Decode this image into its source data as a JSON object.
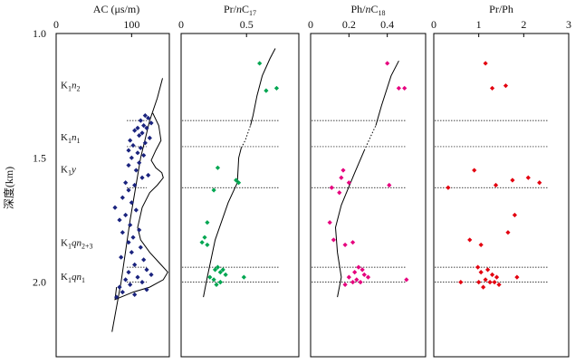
{
  "y_axis": {
    "label": "深度(km)",
    "range": [
      1.0,
      2.3
    ],
    "ticks": [
      1.0,
      1.5,
      2.0
    ],
    "tick_labels": [
      "1.0",
      "1.5",
      "2.0"
    ]
  },
  "formation_boundaries": [
    1.35,
    1.455,
    1.62,
    1.94,
    2.0
  ],
  "formations": [
    {
      "base": "K",
      "sub": "1",
      "italic": "n",
      "suffix": "2",
      "depth": 1.205
    },
    {
      "base": "K",
      "sub": "1",
      "italic": "n",
      "suffix": "1",
      "depth": 1.415
    },
    {
      "base": "K",
      "sub": "1",
      "italic": "y",
      "suffix": "",
      "depth": 1.545
    },
    {
      "base": "K",
      "sub": "1",
      "italic": "qn",
      "suffix": "2+3",
      "depth": 1.84
    },
    {
      "base": "K",
      "sub": "1",
      "italic": "qn",
      "suffix": "1",
      "depth": 1.975
    }
  ],
  "chart_data": [
    {
      "type": "scatter",
      "panel": "ac",
      "title": "AC (μs/m)",
      "xlim": [
        0,
        150
      ],
      "x_ticks": [
        0,
        100
      ],
      "x_tick_labels": [
        "0",
        "100"
      ],
      "ylim": [
        1.0,
        2.3
      ],
      "color": "#1a237e",
      "marker": "diamond",
      "points": [
        [
          118,
          1.33
        ],
        [
          122,
          1.34
        ],
        [
          112,
          1.35
        ],
        [
          126,
          1.36
        ],
        [
          116,
          1.37
        ],
        [
          108,
          1.38
        ],
        [
          120,
          1.38
        ],
        [
          104,
          1.39
        ],
        [
          114,
          1.4
        ],
        [
          110,
          1.41
        ],
        [
          124,
          1.42
        ],
        [
          98,
          1.43
        ],
        [
          118,
          1.44
        ],
        [
          102,
          1.45
        ],
        [
          112,
          1.46
        ],
        [
          96,
          1.47
        ],
        [
          108,
          1.48
        ],
        [
          116,
          1.49
        ],
        [
          100,
          1.5
        ],
        [
          110,
          1.52
        ],
        [
          96,
          1.53
        ],
        [
          106,
          1.55
        ],
        [
          122,
          1.57
        ],
        [
          114,
          1.58
        ],
        [
          92,
          1.6
        ],
        [
          104,
          1.61
        ],
        [
          96,
          1.63
        ],
        [
          88,
          1.66
        ],
        [
          100,
          1.68
        ],
        [
          78,
          1.7
        ],
        [
          106,
          1.71
        ],
        [
          92,
          1.73
        ],
        [
          84,
          1.75
        ],
        [
          98,
          1.77
        ],
        [
          110,
          1.79
        ],
        [
          88,
          1.8
        ],
        [
          102,
          1.82
        ],
        [
          96,
          1.84
        ],
        [
          112,
          1.86
        ],
        [
          100,
          1.88
        ],
        [
          86,
          1.9
        ],
        [
          116,
          1.91
        ],
        [
          104,
          1.93
        ],
        [
          120,
          1.95
        ],
        [
          96,
          1.96
        ],
        [
          126,
          1.97
        ],
        [
          108,
          1.98
        ],
        [
          92,
          1.99
        ],
        [
          114,
          2.0
        ],
        [
          98,
          2.01
        ],
        [
          84,
          2.02
        ],
        [
          120,
          2.03
        ],
        [
          88,
          2.04
        ],
        [
          104,
          2.05
        ],
        [
          80,
          2.06
        ]
      ],
      "trend": [
        [
          74,
          2.2
        ],
        [
          86,
          2.0
        ],
        [
          98,
          1.75
        ],
        [
          112,
          1.5
        ],
        [
          124,
          1.35
        ],
        [
          134,
          1.26
        ],
        [
          141,
          1.18
        ]
      ],
      "envelope": [
        [
          128,
          1.32
        ],
        [
          136,
          1.37
        ],
        [
          139,
          1.43
        ],
        [
          132,
          1.47
        ],
        [
          126,
          1.51
        ],
        [
          132,
          1.54
        ],
        [
          140,
          1.56
        ],
        [
          142,
          1.58
        ],
        [
          134,
          1.61
        ],
        [
          124,
          1.64
        ],
        [
          114,
          1.7
        ],
        [
          108,
          1.78
        ],
        [
          112,
          1.83
        ],
        [
          124,
          1.88
        ],
        [
          136,
          1.92
        ],
        [
          148,
          1.96
        ],
        [
          142,
          1.99
        ],
        [
          124,
          2.02
        ],
        [
          102,
          2.04
        ],
        [
          86,
          2.06
        ],
        [
          78,
          2.07
        ],
        [
          80,
          2.02
        ]
      ]
    },
    {
      "type": "scatter",
      "panel": "pr_nc17",
      "title": "Pr/nC17",
      "title_parts": {
        "main": "Pr/",
        "italic": "n",
        "mid": "C",
        "sub": "17"
      },
      "xlim": [
        0,
        0.9
      ],
      "x_ticks": [
        0,
        0.5
      ],
      "x_tick_labels": [
        "0",
        "0.5"
      ],
      "ylim": [
        1.0,
        2.3
      ],
      "color": "#00a651",
      "marker": "diamond",
      "points": [
        [
          0.6,
          1.12
        ],
        [
          0.65,
          1.23
        ],
        [
          0.73,
          1.22
        ],
        [
          0.28,
          1.54
        ],
        [
          0.42,
          1.59
        ],
        [
          0.44,
          1.6
        ],
        [
          0.25,
          1.63
        ],
        [
          0.2,
          1.76
        ],
        [
          0.18,
          1.82
        ],
        [
          0.16,
          1.84
        ],
        [
          0.2,
          1.85
        ],
        [
          0.28,
          1.94
        ],
        [
          0.32,
          1.95
        ],
        [
          0.26,
          1.95
        ],
        [
          0.3,
          1.96
        ],
        [
          0.34,
          1.97
        ],
        [
          0.22,
          1.98
        ],
        [
          0.25,
          1.99
        ],
        [
          0.3,
          2.0
        ],
        [
          0.48,
          1.98
        ],
        [
          0.27,
          2.01
        ],
        [
          0.3,
          2.0
        ]
      ],
      "trend": [
        [
          0.17,
          2.06
        ],
        [
          0.2,
          1.98
        ],
        [
          0.26,
          1.83
        ],
        [
          0.36,
          1.68
        ],
        [
          0.43,
          1.6
        ],
        [
          0.44,
          1.5
        ],
        [
          0.46,
          1.46
        ]
      ],
      "trend_dotted": [
        [
          0.46,
          1.46
        ],
        [
          0.49,
          1.43
        ],
        [
          0.53,
          1.37
        ]
      ],
      "trend_upper": [
        [
          0.53,
          1.37
        ],
        [
          0.55,
          1.33
        ],
        [
          0.58,
          1.25
        ],
        [
          0.62,
          1.17
        ],
        [
          0.68,
          1.1
        ],
        [
          0.72,
          1.06
        ]
      ]
    },
    {
      "type": "scatter",
      "panel": "ph_nc18",
      "title": "Ph/nC18",
      "title_parts": {
        "main": "Ph/",
        "italic": "n",
        "mid": "C",
        "sub": "18"
      },
      "xlim": [
        0,
        0.6
      ],
      "x_ticks": [
        0,
        0.2,
        0.4
      ],
      "x_tick_labels": [
        "0",
        "0.2",
        "0.4"
      ],
      "ylim": [
        1.0,
        2.3
      ],
      "color": "#e6007e",
      "marker": "diamond",
      "points": [
        [
          0.4,
          1.12
        ],
        [
          0.46,
          1.22
        ],
        [
          0.49,
          1.22
        ],
        [
          0.17,
          1.55
        ],
        [
          0.16,
          1.58
        ],
        [
          0.2,
          1.6
        ],
        [
          0.11,
          1.62
        ],
        [
          0.41,
          1.61
        ],
        [
          0.15,
          1.64
        ],
        [
          0.1,
          1.76
        ],
        [
          0.12,
          1.83
        ],
        [
          0.18,
          1.85
        ],
        [
          0.22,
          1.84
        ],
        [
          0.25,
          1.94
        ],
        [
          0.27,
          1.95
        ],
        [
          0.23,
          1.96
        ],
        [
          0.28,
          1.97
        ],
        [
          0.2,
          1.98
        ],
        [
          0.24,
          1.99
        ],
        [
          0.3,
          1.98
        ],
        [
          0.26,
          2.0
        ],
        [
          0.18,
          2.01
        ],
        [
          0.22,
          2.0
        ],
        [
          0.5,
          1.99
        ]
      ],
      "trend": [
        [
          0.14,
          2.06
        ],
        [
          0.16,
          1.98
        ],
        [
          0.14,
          1.88
        ],
        [
          0.13,
          1.78
        ],
        [
          0.16,
          1.69
        ],
        [
          0.23,
          1.56
        ],
        [
          0.28,
          1.47
        ]
      ],
      "trend_dotted": [
        [
          0.28,
          1.47
        ],
        [
          0.31,
          1.42
        ],
        [
          0.34,
          1.37
        ]
      ],
      "trend_upper": [
        [
          0.34,
          1.37
        ],
        [
          0.37,
          1.29
        ],
        [
          0.42,
          1.17
        ],
        [
          0.46,
          1.11
        ]
      ]
    },
    {
      "type": "scatter",
      "panel": "pr_ph",
      "title": "Pr/Ph",
      "xlim": [
        0,
        3
      ],
      "x_ticks": [
        0,
        1,
        2,
        3
      ],
      "x_tick_labels": [
        "0",
        "1",
        "2",
        "3"
      ],
      "ylim": [
        1.0,
        2.3
      ],
      "color": "#e3000f",
      "marker": "diamond",
      "points": [
        [
          1.15,
          1.12
        ],
        [
          1.3,
          1.22
        ],
        [
          1.6,
          1.21
        ],
        [
          0.9,
          1.55
        ],
        [
          1.75,
          1.59
        ],
        [
          2.1,
          1.58
        ],
        [
          2.35,
          1.6
        ],
        [
          1.38,
          1.61
        ],
        [
          0.32,
          1.62
        ],
        [
          1.8,
          1.73
        ],
        [
          1.65,
          1.8
        ],
        [
          0.8,
          1.83
        ],
        [
          1.05,
          1.85
        ],
        [
          0.98,
          1.94
        ],
        [
          1.2,
          1.95
        ],
        [
          1.05,
          1.96
        ],
        [
          1.3,
          1.97
        ],
        [
          1.4,
          1.98
        ],
        [
          1.15,
          1.99
        ],
        [
          1.85,
          1.98
        ],
        [
          1.0,
          2.0
        ],
        [
          1.25,
          2.0
        ],
        [
          0.6,
          2.0
        ],
        [
          1.45,
          2.01
        ],
        [
          1.1,
          2.02
        ],
        [
          1.35,
          2.0
        ]
      ]
    }
  ]
}
